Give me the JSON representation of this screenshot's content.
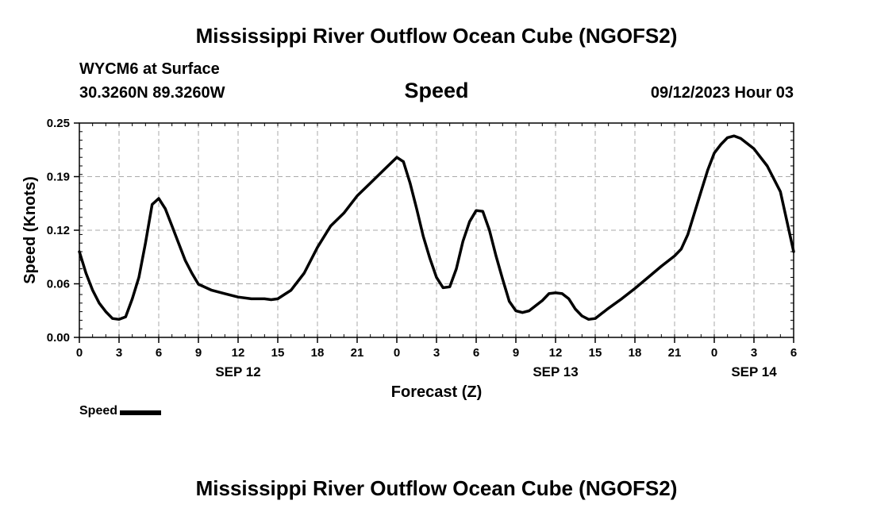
{
  "header": {
    "title_top": "Mississippi River Outflow Ocean Cube (NGOFS2)",
    "station": "WYCM6 at Surface",
    "coords": "30.3260N  89.3260W",
    "plot_title": "Speed",
    "timestamp": "09/12/2023 Hour 03",
    "title_bottom": "Mississippi River Outflow Ocean Cube (NGOFS2)"
  },
  "legend": {
    "label": "Speed"
  },
  "chart_data": {
    "type": "line",
    "xlabel": "Forecast (Z)",
    "ylabel": "Speed (Knots)",
    "xlim": [
      0,
      54
    ],
    "ylim": [
      0,
      0.25
    ],
    "yticks": [
      "0.00",
      "0.06",
      "0.12",
      "0.19",
      "0.25"
    ],
    "ytick_values": [
      0,
      0.0625,
      0.125,
      0.1875,
      0.25
    ],
    "xticks": [
      {
        "hour": 0,
        "label": "0"
      },
      {
        "hour": 3,
        "label": "3"
      },
      {
        "hour": 6,
        "label": "6"
      },
      {
        "hour": 9,
        "label": "9"
      },
      {
        "hour": 12,
        "label": "12"
      },
      {
        "hour": 15,
        "label": "15"
      },
      {
        "hour": 18,
        "label": "18"
      },
      {
        "hour": 21,
        "label": "21"
      },
      {
        "hour": 24,
        "label": "0"
      },
      {
        "hour": 27,
        "label": "3"
      },
      {
        "hour": 30,
        "label": "6"
      },
      {
        "hour": 33,
        "label": "9"
      },
      {
        "hour": 36,
        "label": "12"
      },
      {
        "hour": 39,
        "label": "15"
      },
      {
        "hour": 42,
        "label": "18"
      },
      {
        "hour": 45,
        "label": "21"
      },
      {
        "hour": 48,
        "label": "0"
      },
      {
        "hour": 51,
        "label": "3"
      },
      {
        "hour": 54,
        "label": "6"
      }
    ],
    "date_labels": [
      {
        "hour": 12,
        "label": "SEP 12"
      },
      {
        "hour": 36,
        "label": "SEP 13"
      },
      {
        "hour": 51,
        "label": "SEP 14"
      }
    ],
    "grid": true,
    "series": [
      {
        "name": "Speed",
        "color": "#000000",
        "x": [
          0,
          0.5,
          1,
          1.5,
          2,
          2.5,
          3,
          3.5,
          4,
          4.5,
          5,
          5.5,
          6,
          6.5,
          7,
          7.5,
          8,
          8.5,
          9,
          10,
          11,
          12,
          13,
          14,
          14.5,
          15,
          15.5,
          16,
          17,
          18,
          19,
          20,
          21,
          22,
          23,
          24,
          24.5,
          25,
          25.5,
          26,
          26.5,
          27,
          27.5,
          28,
          28.5,
          29,
          29.5,
          30,
          30.5,
          31,
          31.5,
          32,
          32.5,
          33,
          33.5,
          34,
          35,
          35.5,
          36,
          36.5,
          37,
          37.5,
          38,
          38.5,
          39,
          39.5,
          40,
          41,
          42,
          43,
          44,
          45,
          45.5,
          46,
          46.5,
          47,
          47.5,
          48,
          48.5,
          49,
          49.5,
          50,
          51,
          52,
          53,
          54
        ],
        "y": [
          0.1,
          0.075,
          0.055,
          0.04,
          0.03,
          0.022,
          0.021,
          0.024,
          0.045,
          0.07,
          0.11,
          0.155,
          0.162,
          0.15,
          0.13,
          0.11,
          0.09,
          0.075,
          0.062,
          0.055,
          0.051,
          0.047,
          0.045,
          0.045,
          0.044,
          0.045,
          0.05,
          0.055,
          0.075,
          0.105,
          0.13,
          0.145,
          0.165,
          0.18,
          0.195,
          0.21,
          0.205,
          0.18,
          0.15,
          0.118,
          0.092,
          0.07,
          0.058,
          0.059,
          0.08,
          0.112,
          0.135,
          0.148,
          0.147,
          0.125,
          0.095,
          0.068,
          0.042,
          0.031,
          0.029,
          0.031,
          0.043,
          0.051,
          0.052,
          0.051,
          0.045,
          0.033,
          0.025,
          0.021,
          0.022,
          0.028,
          0.034,
          0.045,
          0.057,
          0.07,
          0.083,
          0.095,
          0.103,
          0.12,
          0.145,
          0.17,
          0.195,
          0.215,
          0.225,
          0.233,
          0.235,
          0.232,
          0.22,
          0.2,
          0.17,
          0.1
        ]
      }
    ]
  }
}
